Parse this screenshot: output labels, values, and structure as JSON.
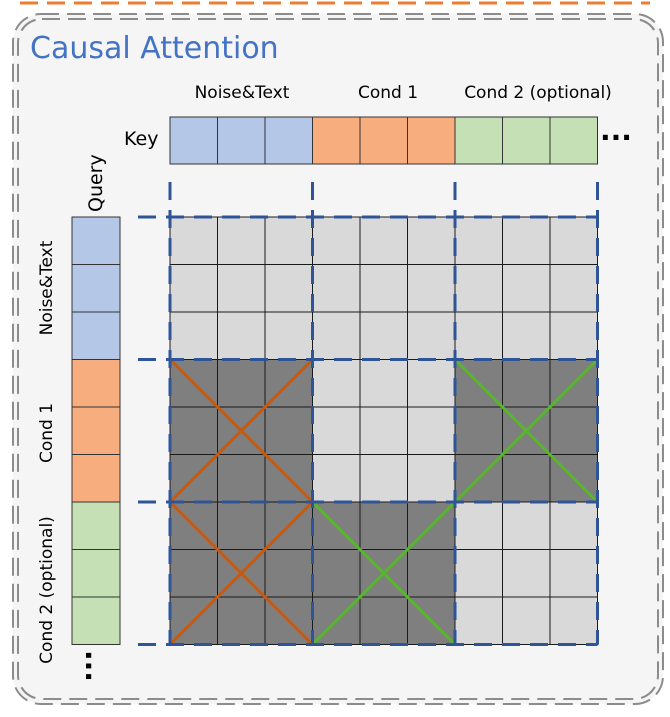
{
  "title": "Causal Attention",
  "key_label": "Key",
  "query_label": "Query",
  "groups": [
    "Noise&Text",
    "Cond 1",
    "Cond 2 (optional)"
  ],
  "ellipsis": "...",
  "colors": {
    "title": "#4472c4",
    "outer_border": "#8c8c8c",
    "top_strip": "#ed7d31",
    "group_fill": [
      "#b4c7e7",
      "#f8ad7f",
      "#c5e0b4"
    ],
    "cell_visible": "#d9d9d9",
    "cell_masked": "#7f7f7f",
    "cell_border": "#1a1a1a",
    "dash": "#2f5597",
    "cross": {
      "orange": "#c55a11",
      "green": "#59b52c"
    }
  },
  "tokens_per_group": 3,
  "attention_mask": [
    [
      "visible",
      "visible",
      "visible"
    ],
    [
      "masked",
      "visible",
      "masked"
    ],
    [
      "masked",
      "masked",
      "visible"
    ]
  ],
  "crosses": [
    {
      "row": 1,
      "col": 0,
      "color": "orange"
    },
    {
      "row": 1,
      "col": 2,
      "color": "green"
    },
    {
      "row": 2,
      "col": 0,
      "color": "orange"
    },
    {
      "row": 2,
      "col": 1,
      "color": "green"
    }
  ]
}
